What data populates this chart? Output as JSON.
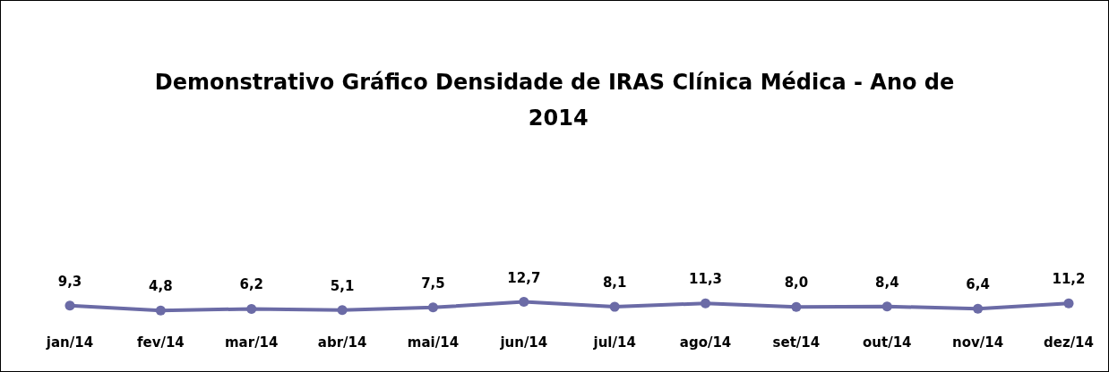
{
  "chart_data": {
    "type": "line",
    "title": "Demonstrativo Gráfico Densidade de IRAS Clínica Médica - Ano de 2014",
    "categories": [
      "jan/14",
      "fev/14",
      "mar/14",
      "abr/14",
      "mai/14",
      "jun/14",
      "jul/14",
      "ago/14",
      "set/14",
      "out/14",
      "nov/14",
      "dez/14"
    ],
    "series": [
      {
        "color": "#6b6ba6",
        "values": [
          9.3,
          4.8,
          6.2,
          5.1,
          7.5,
          12.7,
          8.1,
          11.3,
          8.0,
          8.4,
          6.4,
          11.2
        ],
        "value_labels": [
          "9,3",
          "4,8",
          "6,2",
          "5,1",
          "7,5",
          "12,7",
          "8,1",
          "11,3",
          "8,0",
          "8,4",
          "6,4",
          "11,2"
        ]
      }
    ],
    "marker": "circle",
    "line_style": "solid"
  }
}
